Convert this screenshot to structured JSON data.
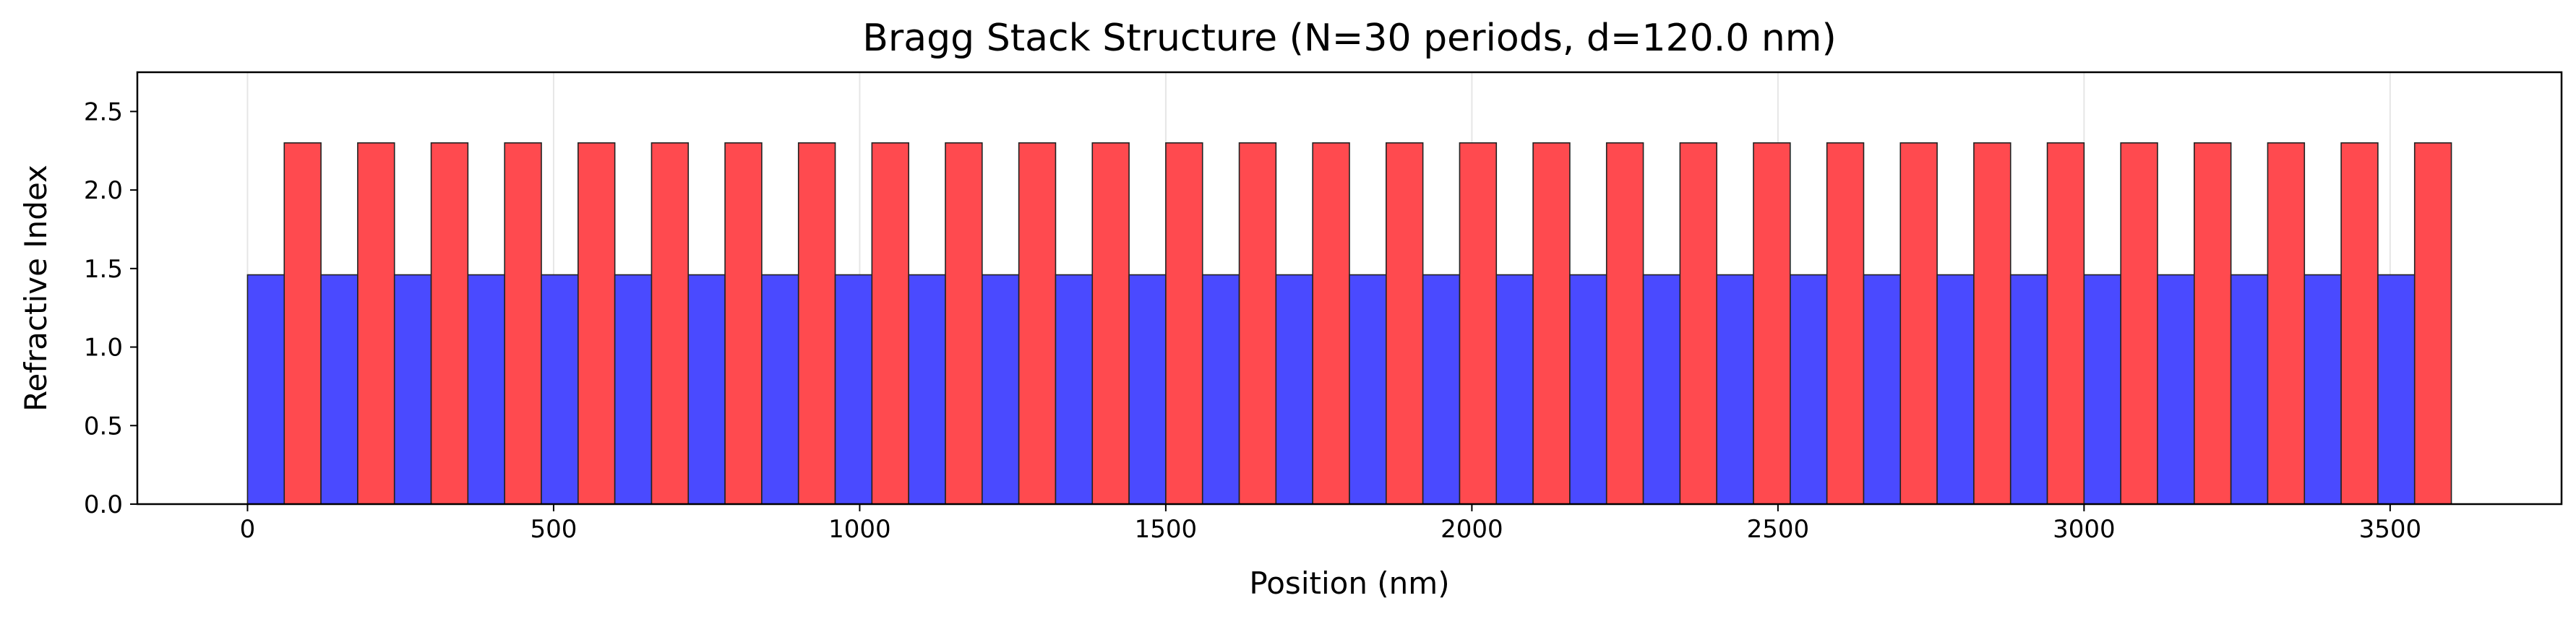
{
  "chart_data": {
    "type": "bar",
    "title": "Bragg Stack Structure (N=30 periods, d=120.0 nm)",
    "xlabel": "Position (nm)",
    "ylabel": "Refractive Index",
    "xlim": [
      -180,
      3780
    ],
    "ylim": [
      0,
      2.75
    ],
    "xticks": [
      0,
      500,
      1000,
      1500,
      2000,
      2500,
      3000,
      3500
    ],
    "yticks": [
      0.0,
      0.5,
      1.0,
      1.5,
      2.0,
      2.5
    ],
    "grid": "x-only",
    "legend": "none",
    "periods": 30,
    "period_nm": 120.0,
    "series": [
      {
        "role": "low-index layers",
        "refractive_index": 1.46,
        "layer_thickness_nm": 60.0,
        "first_start_nm": 0,
        "color": "#4a4aff"
      },
      {
        "role": "high-index layers",
        "refractive_index": 2.3,
        "layer_thickness_nm": 60.0,
        "first_start_nm": 60,
        "color": "#ff4a4f"
      }
    ]
  },
  "colors": {
    "low_layer": "#4a4aff",
    "high_layer": "#ff4a4f",
    "edge": "#222222",
    "grid": "#e6e6e6",
    "axes": "#000000"
  }
}
